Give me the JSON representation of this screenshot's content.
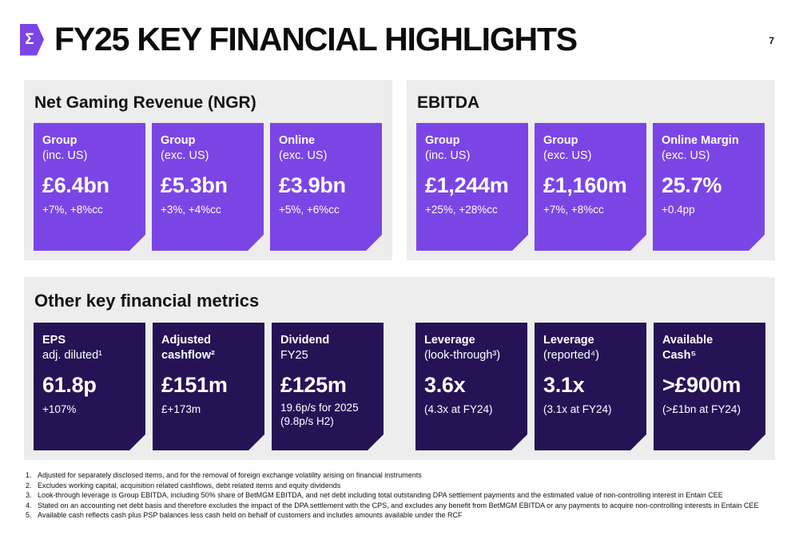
{
  "slide": {
    "title": "FY25 KEY FINANCIAL HIGHLIGHTS",
    "page_number": "7",
    "logo_glyph": "Σ"
  },
  "colors": {
    "accent_purple": "#7B45E6",
    "dark_purple": "#261356",
    "panel_gray": "#EDEDED"
  },
  "ngr": {
    "title": "Net Gaming Revenue (NGR)",
    "cards": [
      {
        "label1": "Group",
        "label2": "(inc. US)",
        "value": "£6.4bn",
        "sub1": "+7%, +8%cc"
      },
      {
        "label1": "Group",
        "label2": "(exc. US)",
        "value": "£5.3bn",
        "sub1": "+3%, +4%cc"
      },
      {
        "label1": "Online",
        "label2": "(exc. US)",
        "value": "£3.9bn",
        "sub1": "+5%, +6%cc"
      }
    ]
  },
  "ebitda": {
    "title": "EBITDA",
    "cards": [
      {
        "label1": "Group",
        "label2": "(inc. US)",
        "value": "£1,244m",
        "sub1": "+25%, +28%cc"
      },
      {
        "label1": "Group",
        "label2": "(exc. US)",
        "value": "£1,160m",
        "sub1": "+7%, +8%cc"
      },
      {
        "label1": "Online Margin",
        "label2": "(exc. US)",
        "value": "25.7%",
        "sub1": "+0.4pp"
      }
    ]
  },
  "other": {
    "title": "Other key financial metrics",
    "cards": [
      {
        "label1": "EPS",
        "label2": "adj. diluted¹",
        "value": "61.8p",
        "sub1": "+107%"
      },
      {
        "label1": "Adjusted",
        "label2": "cashflow²",
        "value": "£151m",
        "sub1": "£+173m"
      },
      {
        "label1": "Dividend",
        "label2": "FY25",
        "value": "£125m",
        "sub1": "19.6p/s for 2025",
        "sub2": "(9.8p/s H2)"
      },
      {
        "label1": "Leverage",
        "label2": "(look-through³)",
        "value": "3.6x",
        "sub1": "(4.3x at FY24)"
      },
      {
        "label1": "Leverage",
        "label2": "(reported⁴)",
        "value": "3.1x",
        "sub1": "(3.1x at FY24)"
      },
      {
        "label1": "Available",
        "label2": "Cash⁵",
        "value": ">£900m",
        "sub1": "(>£1bn at FY24)"
      }
    ]
  },
  "footnotes": [
    {
      "num": "1.",
      "text": "Adjusted for separately disclosed items, and for the removal of foreign exchange volatility arising on financial instruments"
    },
    {
      "num": "2.",
      "text": "Excludes working capital, acquisition related cashflows, debt related items and equity dividends"
    },
    {
      "num": "3.",
      "text": "Look-through leverage is Group EBITDA, including 50% share of BetMGM EBITDA, and net debt including total outstanding DPA settlement payments and the estimated value of non-controlling interest in Entain CEE"
    },
    {
      "num": "4.",
      "text": "Stated on an accounting net debt basis and therefore excludes the impact of the DPA settlement with the CPS, and excludes any benefit from BetMGM EBITDA or any payments to acquire non-controlling interests in Entain CEE"
    },
    {
      "num": "5.",
      "text": "Available cash reflects cash plus PSP balances less cash held on behalf of customers and includes amounts available under the RCF"
    }
  ]
}
